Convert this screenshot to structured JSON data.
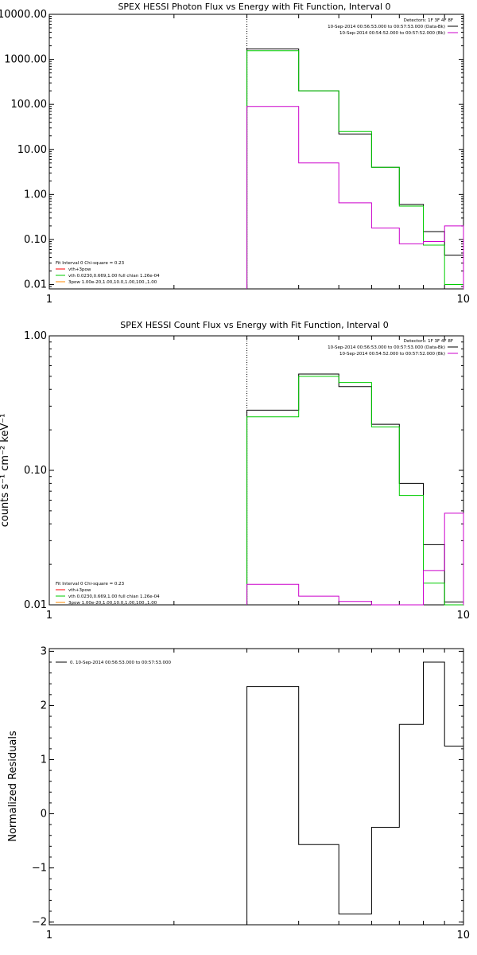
{
  "chart_data": [
    {
      "type": "line",
      "title": "SPEX HESSI Photon Flux vs Energy with Fit Function, Interval 0",
      "xlabel": "",
      "ylabel": "",
      "xscale": "log",
      "yscale": "log",
      "xlim": [
        1,
        10
      ],
      "ylim": [
        0.008,
        10000
      ],
      "x_ticks": [
        "1",
        "10"
      ],
      "y_ticks": [
        "10000.00",
        "1000.00",
        "100.00",
        "10.00",
        "1.00",
        "0.10",
        "0.01"
      ],
      "y_tick_values": [
        10000,
        1000,
        100,
        10,
        1,
        0.1,
        0.01
      ],
      "marker_x": 3,
      "legend_top": [
        "Detectors: 1F 3F 4F 8F",
        "10-Sep-2014 00:56:53.000 to 00:57:53.000 (Data-Bk)",
        "10-Sep-2014 00:54:52.000 to 00:57:52.000 (Bk)"
      ],
      "legend_bottom": [
        "Fit Interval 0   Chi-square = 0.23",
        "vth+3pow",
        "vth 0.0230,0.669,1.00  full chian 1.26e-04",
        "3pow 1.00e-20,1.00,10.0,1.00,100.,1.00"
      ],
      "colors": {
        "data": "#000000",
        "model": "#00cc00",
        "background": "#cc00cc",
        "component": "#ff8800",
        "red": "#ff0000"
      },
      "series": [
        {
          "name": "Data-Bk",
          "color": "#000000",
          "edges": [
            3,
            4,
            5,
            6,
            7,
            8,
            9,
            10
          ],
          "values": [
            1700,
            200,
            22,
            4,
            0.6,
            0.15,
            0.045
          ]
        },
        {
          "name": "vth+3pow",
          "color": "#00cc00",
          "edges": [
            3,
            4,
            5,
            6,
            7,
            8,
            9,
            10
          ],
          "values": [
            1550,
            200,
            25,
            4,
            0.55,
            0.075,
            0.01
          ]
        },
        {
          "name": "Bk",
          "color": "#cc00cc",
          "edges": [
            3,
            4,
            5,
            6,
            7,
            8,
            9,
            10
          ],
          "values": [
            90,
            5,
            0.65,
            0.18,
            0.08,
            0.09,
            0.2
          ]
        }
      ]
    },
    {
      "type": "line",
      "title": "SPEX HESSI Count Flux vs Energy with Fit Function, Interval 0",
      "xlabel": "",
      "ylabel": "counts s⁻¹ cm⁻² keV⁻¹",
      "xscale": "log",
      "yscale": "log",
      "xlim": [
        1,
        10
      ],
      "ylim": [
        0.01,
        1
      ],
      "x_ticks": [
        "1",
        "10"
      ],
      "y_ticks": [
        "1.00",
        "0.10",
        "0.01"
      ],
      "y_tick_values": [
        1,
        0.1,
        0.01
      ],
      "marker_x": 3,
      "legend_top": [
        "Detectors: 1F 3F 4F 8F",
        "10-Sep-2014 00:56:53.000 to 00:57:53.000 (Data-Bk)",
        "10-Sep-2014 00:54:52.000 to 00:57:52.000 (Bk)"
      ],
      "legend_bottom": [
        "Fit Interval 0   Chi-square = 0.23",
        "vth+3pow",
        "vth 0.0230,0.669,1.00  full chian 1.26e-04",
        "3pow 1.00e-20,1.00,10.0,1.00,100.,1.00"
      ],
      "series": [
        {
          "name": "Data-Bk",
          "color": "#000000",
          "edges": [
            3,
            4,
            5,
            6,
            7,
            8,
            9,
            10
          ],
          "values": [
            0.28,
            0.52,
            0.42,
            0.22,
            0.08,
            0.028,
            0.0105
          ]
        },
        {
          "name": "vth+3pow",
          "color": "#00cc00",
          "edges": [
            3,
            4,
            5,
            6,
            7,
            8,
            9,
            10
          ],
          "values": [
            0.25,
            0.5,
            0.45,
            0.21,
            0.065,
            0.0145,
            0.0093
          ]
        },
        {
          "name": "Bk",
          "color": "#cc00cc",
          "edges": [
            3,
            4,
            5,
            6,
            7,
            8,
            9,
            10
          ],
          "values": [
            0.0142,
            0.0116,
            0.0106,
            0.0098,
            0.0099,
            0.018,
            0.048
          ]
        }
      ]
    },
    {
      "type": "line",
      "title": "",
      "xlabel": "",
      "ylabel": "Normalized Residuals",
      "xscale": "log",
      "yscale": "linear",
      "xlim": [
        1,
        10
      ],
      "ylim": [
        -2.05,
        3.05
      ],
      "x_ticks": [
        "1",
        "10"
      ],
      "y_ticks": [
        "3",
        "2",
        "1",
        "0",
        "−1",
        "−2"
      ],
      "y_tick_values": [
        3,
        2,
        1,
        0,
        -1,
        -2
      ],
      "legend": [
        "0. 10-Sep-2014 00:56:53.000 to 00:57:53.000"
      ],
      "series": [
        {
          "name": "0. 10-Sep-2014 00:56:53.000 to 00:57:53.000",
          "color": "#000000",
          "edges": [
            3,
            4,
            5,
            6,
            7,
            8,
            9,
            10
          ],
          "values": [
            2.35,
            -0.57,
            -1.85,
            -0.25,
            1.65,
            2.8,
            1.25
          ]
        }
      ]
    }
  ]
}
